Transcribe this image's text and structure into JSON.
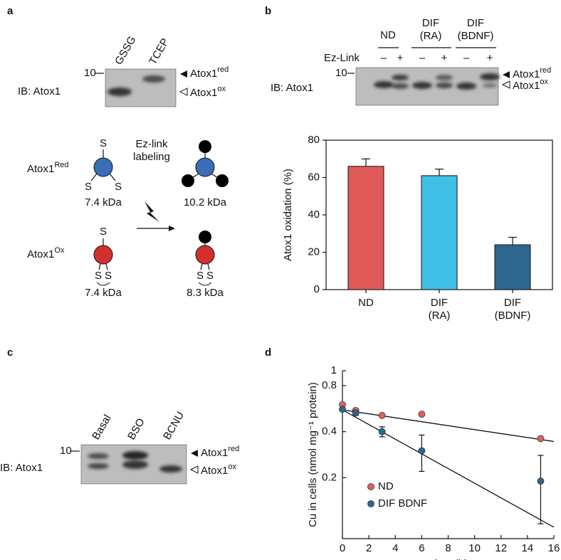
{
  "panel_labels": [
    "a",
    "b",
    "c",
    "d"
  ],
  "panel_a": {
    "lanes": [
      "GSSG",
      "TCEP"
    ],
    "marker": "10",
    "antibody": "IB: Atox1",
    "band_red": {
      "base": "Atox1",
      "sup": "red"
    },
    "band_ox": {
      "base": "Atox1",
      "sup": "ox"
    }
  },
  "scheme": {
    "reduced": {
      "base": "Atox1",
      "sup": "Red"
    },
    "oxidized": {
      "base": "Atox1",
      "sup": "Ox"
    },
    "sulfur": "S",
    "reaction": "Ez-link\nlabeling",
    "mass_reduced": "7.4 kDa",
    "mass_reduced_labeled": "10.2 kDa",
    "mass_oxidized": "7.4 kDa",
    "mass_oxidized_labeled": "8.3 kDa"
  },
  "panel_b_blot": {
    "groups": [
      "ND",
      "DIF\n(RA)",
      "DIF\n(BDNF)"
    ],
    "reagent": "Ez-Link",
    "minus": "–",
    "plus": "+",
    "marker": "10",
    "antibody": "IB: Atox1",
    "band_red": {
      "base": "Atox1",
      "sup": "red"
    },
    "band_ox": {
      "base": "Atox1",
      "sup": "ox"
    }
  },
  "panel_c": {
    "lanes": [
      "Basal",
      "BSO",
      "BCNU"
    ],
    "marker": "10",
    "antibody": "IB: Atox1",
    "band_red": {
      "base": "Atox1",
      "sup": "red"
    },
    "band_ox": {
      "base": "Atox1",
      "sup": "ox"
    }
  },
  "chart_data": [
    {
      "type": "bar",
      "categories": [
        "ND",
        "DIF\n(RA)",
        "DIF\n(BDNF)"
      ],
      "values": [
        66,
        61,
        24
      ],
      "errors": [
        4,
        3.5,
        4
      ],
      "colors": [
        "#e05a5a",
        "#40c0e6",
        "#2e6690"
      ],
      "ylabel": "Atox1 oxidation (%)",
      "ylim": [
        0,
        80
      ],
      "yticks": [
        0,
        20,
        40,
        60,
        80
      ]
    },
    {
      "type": "scatter",
      "xlabel": "Time (h)",
      "ylabel": "Cu in cells (nmol mg⁻¹ protein)",
      "log_y": true,
      "xlim": [
        0,
        16
      ],
      "xticks": [
        0,
        2,
        4,
        6,
        8,
        10,
        12,
        14,
        16
      ],
      "ylim": [
        0.08,
        1
      ],
      "yticks": [
        0.2,
        0.4,
        0.8,
        1
      ],
      "legend": "lower left",
      "fit_x": [
        0,
        16
      ],
      "series": [
        {
          "name": "ND",
          "color": "#e06060",
          "x": [
            0,
            1,
            3,
            6,
            15
          ],
          "values": [
            0.6,
            0.55,
            0.51,
            0.52,
            0.36
          ],
          "errors": [
            null,
            null,
            null,
            null,
            null
          ],
          "fit": [
            0.555,
            0.345
          ]
        },
        {
          "name": "DIF BDNF",
          "color": "#2e6690",
          "x": [
            0,
            1,
            3,
            6,
            15
          ],
          "values": [
            0.56,
            0.53,
            0.4,
            0.3,
            0.19
          ],
          "errors": [
            null,
            0.02,
            0.03,
            0.08,
            0.09
          ],
          "fit": [
            0.555,
            0.095
          ]
        }
      ]
    }
  ]
}
